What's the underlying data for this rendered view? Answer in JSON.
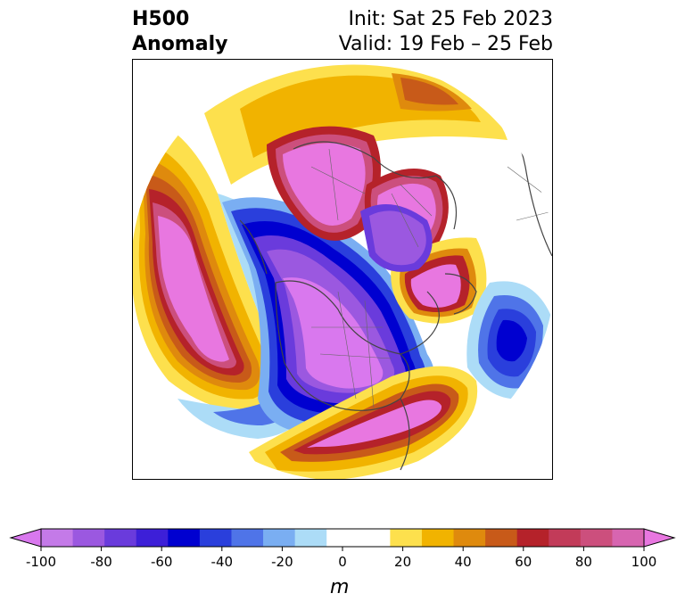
{
  "header": {
    "title_line1": "H500",
    "title_line2": "Anomaly",
    "init": "Init: Sat 25 Feb 2023",
    "valid": "Valid: 19 Feb – 25 Feb"
  },
  "colorbar": {
    "unit": "m",
    "ticks": [
      "-100",
      "-80",
      "-60",
      "-40",
      "-20",
      "0",
      "20",
      "40",
      "60",
      "80",
      "100"
    ],
    "extend_low_color": "#d978ee",
    "extend_high_color": "#e877e0",
    "colors": [
      "#c47ae8",
      "#9b58e0",
      "#6a3bdc",
      "#3d1fd8",
      "#0000d0",
      "#2a3fdc",
      "#4f74e8",
      "#7aaef2",
      "#acdcf7",
      "#ffffff",
      "#ffffff",
      "#fde04d",
      "#f1b300",
      "#df8a0d",
      "#c85a19",
      "#b5222a",
      "#c23b59",
      "#cc4f7d",
      "#d765b0"
    ]
  }
}
